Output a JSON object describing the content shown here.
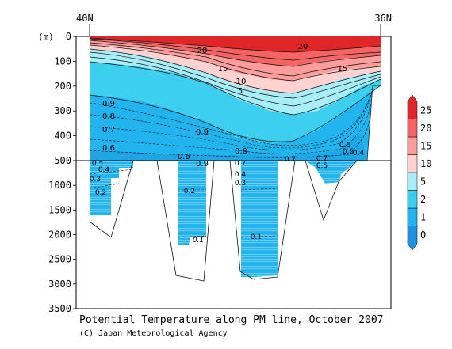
{
  "chart_data": {
    "type": "heatmap",
    "title": "Potential Temperature along PM line, October 2007",
    "credit": "(C) Japan Meteorological Agency",
    "ylabel": "(m)",
    "x_tick_labels": [
      "40N",
      "36N"
    ],
    "y_ticks_upper": [
      0,
      100,
      200,
      300,
      400,
      500
    ],
    "y_ticks_lower": [
      1000,
      1500,
      2000,
      2500,
      3000,
      3500
    ],
    "ylim": [
      0,
      3500
    ],
    "y_axis_break": 500,
    "colorbar": {
      "levels": [
        0,
        1,
        2,
        5,
        10,
        15,
        20,
        25
      ],
      "labels": [
        "0",
        "1",
        "2",
        "5",
        "10",
        "15",
        "20",
        "25"
      ],
      "colors": [
        "#1e90e0",
        "#22b4ee",
        "#3ccff0",
        "#a8eef8",
        "#ffd2d2",
        "#ff9c9c",
        "#f46464",
        "#e02626"
      ]
    },
    "contour_labels": [
      "20",
      "20",
      "15",
      "15",
      "10",
      "5",
      "0.9",
      "0.8",
      "0.7",
      "0.6",
      "0.5",
      "0.4",
      "0.3",
      "0.2",
      "0.9",
      "0.8",
      "0.6",
      "0.9",
      "0.7",
      "0.4",
      "0.3",
      "0.2",
      "0.1",
      "0.1",
      "0.7",
      "0.6",
      "0.5",
      "0.7",
      "0.6",
      "0.4"
    ],
    "grid": false
  }
}
